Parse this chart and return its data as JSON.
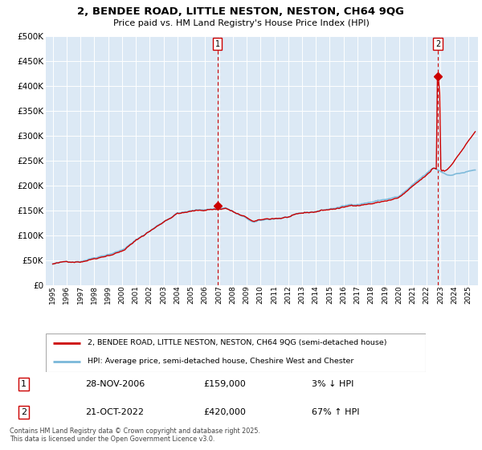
{
  "title": "2, BENDEE ROAD, LITTLE NESTON, NESTON, CH64 9QG",
  "subtitle": "Price paid vs. HM Land Registry's House Price Index (HPI)",
  "legend_line1": "2, BENDEE ROAD, LITTLE NESTON, NESTON, CH64 9QG (semi-detached house)",
  "legend_line2": "HPI: Average price, semi-detached house, Cheshire West and Chester",
  "footer": "Contains HM Land Registry data © Crown copyright and database right 2025.\nThis data is licensed under the Open Government Licence v3.0.",
  "annotation1_date": "28-NOV-2006",
  "annotation1_price": "£159,000",
  "annotation1_hpi": "3% ↓ HPI",
  "annotation1_value": 159000,
  "annotation1_year": 2006.91,
  "annotation2_date": "21-OCT-2022",
  "annotation2_price": "£420,000",
  "annotation2_hpi": "67% ↑ HPI",
  "annotation2_value": 420000,
  "annotation2_year": 2022.8,
  "hpi_line_color": "#7ab8d9",
  "price_line_color": "#cc0000",
  "marker_color": "#cc0000",
  "vline_color": "#cc0000",
  "plot_bg_color": "#dce9f5",
  "grid_color": "#ffffff",
  "ylim": [
    0,
    500000
  ],
  "xlim_start": 1994.5,
  "xlim_end": 2025.7,
  "ytick_values": [
    0,
    50000,
    100000,
    150000,
    200000,
    250000,
    300000,
    350000,
    400000,
    450000,
    500000
  ],
  "ytick_labels": [
    "£0",
    "£50K",
    "£100K",
    "£150K",
    "£200K",
    "£250K",
    "£300K",
    "£350K",
    "£400K",
    "£450K",
    "£500K"
  ],
  "xtick_years": [
    1995,
    1996,
    1997,
    1998,
    1999,
    2000,
    2001,
    2002,
    2003,
    2004,
    2005,
    2006,
    2007,
    2008,
    2009,
    2010,
    2011,
    2012,
    2013,
    2014,
    2015,
    2016,
    2017,
    2018,
    2019,
    2020,
    2021,
    2022,
    2023,
    2024,
    2025
  ]
}
